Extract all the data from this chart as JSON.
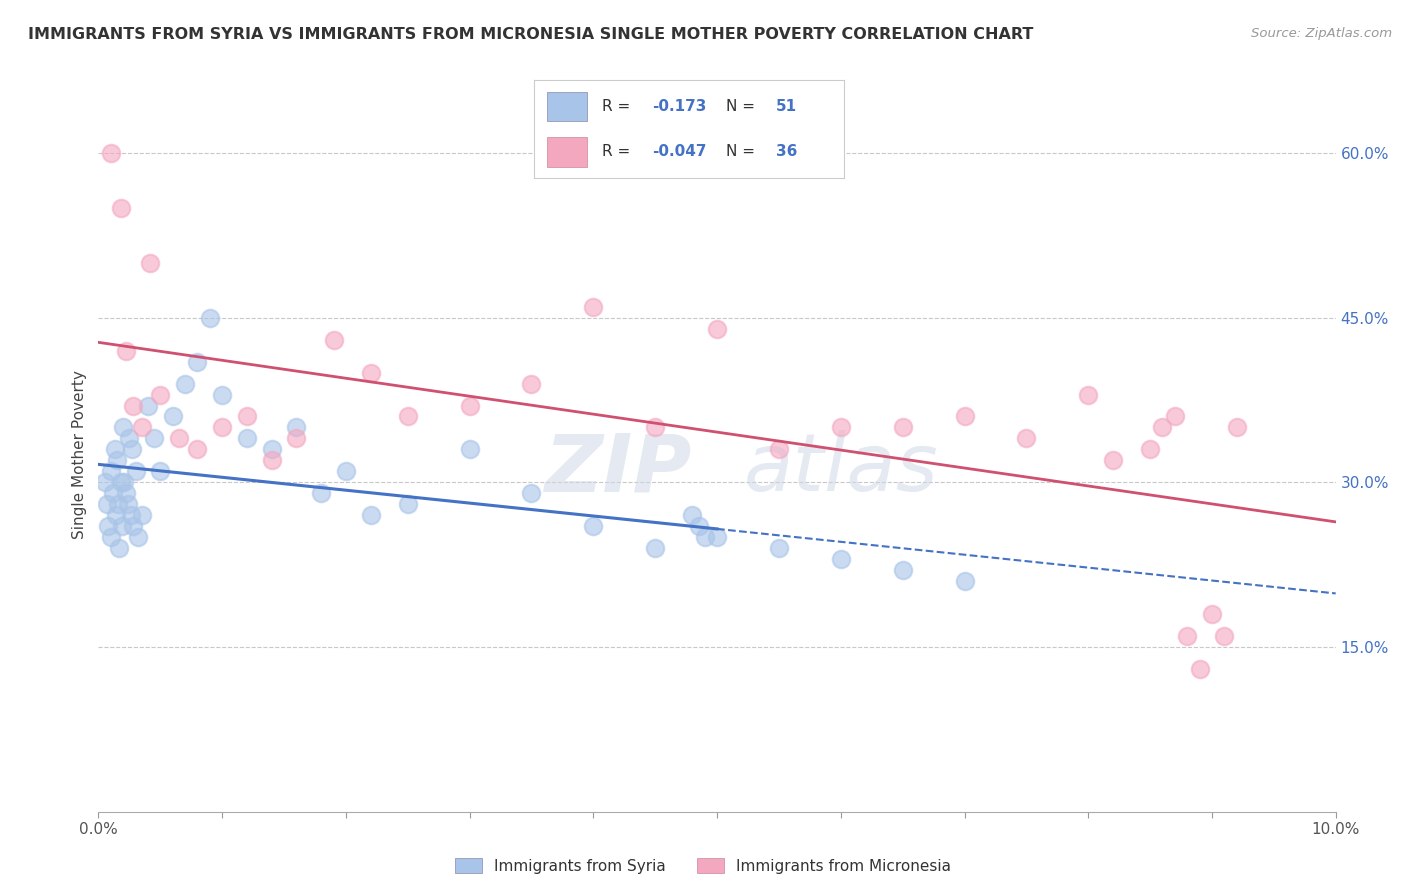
{
  "title": "IMMIGRANTS FROM SYRIA VS IMMIGRANTS FROM MICRONESIA SINGLE MOTHER POVERTY CORRELATION CHART",
  "source": "Source: ZipAtlas.com",
  "ylabel": "Single Mother Poverty",
  "xlim": [
    0.0,
    10.0
  ],
  "ylim": [
    0.0,
    65.0
  ],
  "y_ticks_right": [
    15.0,
    30.0,
    45.0,
    60.0
  ],
  "color_syria": "#a8c4e8",
  "color_micronesia": "#f4a8c0",
  "color_syria_line": "#4472c4",
  "color_micronesia_line": "#d05070",
  "color_text_blue": "#4472c4",
  "color_grid": "#c8c8c8",
  "background_color": "#ffffff",
  "syria_x": [
    0.05,
    0.07,
    0.08,
    0.1,
    0.1,
    0.12,
    0.13,
    0.14,
    0.15,
    0.16,
    0.17,
    0.18,
    0.19,
    0.2,
    0.21,
    0.22,
    0.24,
    0.25,
    0.26,
    0.27,
    0.28,
    0.3,
    0.32,
    0.35,
    0.4,
    0.45,
    0.5,
    0.6,
    0.7,
    0.8,
    0.9,
    1.0,
    1.2,
    1.4,
    1.6,
    1.8,
    2.0,
    2.2,
    2.5,
    3.0,
    3.5,
    4.0,
    4.5,
    5.0,
    5.5,
    6.0,
    6.5,
    7.0,
    4.8,
    4.85,
    4.9
  ],
  "syria_y": [
    30,
    28,
    26,
    25,
    31,
    29,
    33,
    27,
    32,
    28,
    24,
    30,
    26,
    35,
    30,
    29,
    28,
    34,
    27,
    33,
    26,
    31,
    25,
    27,
    37,
    34,
    31,
    36,
    39,
    41,
    45,
    38,
    34,
    33,
    35,
    29,
    31,
    27,
    28,
    33,
    29,
    26,
    24,
    25,
    24,
    23,
    22,
    21,
    27,
    26,
    25
  ],
  "micronesia_x": [
    0.1,
    0.18,
    0.22,
    0.28,
    0.35,
    0.42,
    0.5,
    0.65,
    0.8,
    1.0,
    1.2,
    1.4,
    1.6,
    1.9,
    2.2,
    2.5,
    3.0,
    3.5,
    4.0,
    4.5,
    5.0,
    5.5,
    6.0,
    6.5,
    7.0,
    7.5,
    8.0,
    8.2,
    8.5,
    8.6,
    8.7,
    8.8,
    8.9,
    9.0,
    9.1,
    9.2
  ],
  "micronesia_y": [
    60,
    55,
    42,
    37,
    35,
    50,
    38,
    34,
    33,
    35,
    36,
    32,
    34,
    43,
    40,
    36,
    37,
    39,
    46,
    35,
    44,
    33,
    35,
    35,
    36,
    34,
    38,
    32,
    33,
    35,
    36,
    16,
    13,
    18,
    16,
    35
  ]
}
